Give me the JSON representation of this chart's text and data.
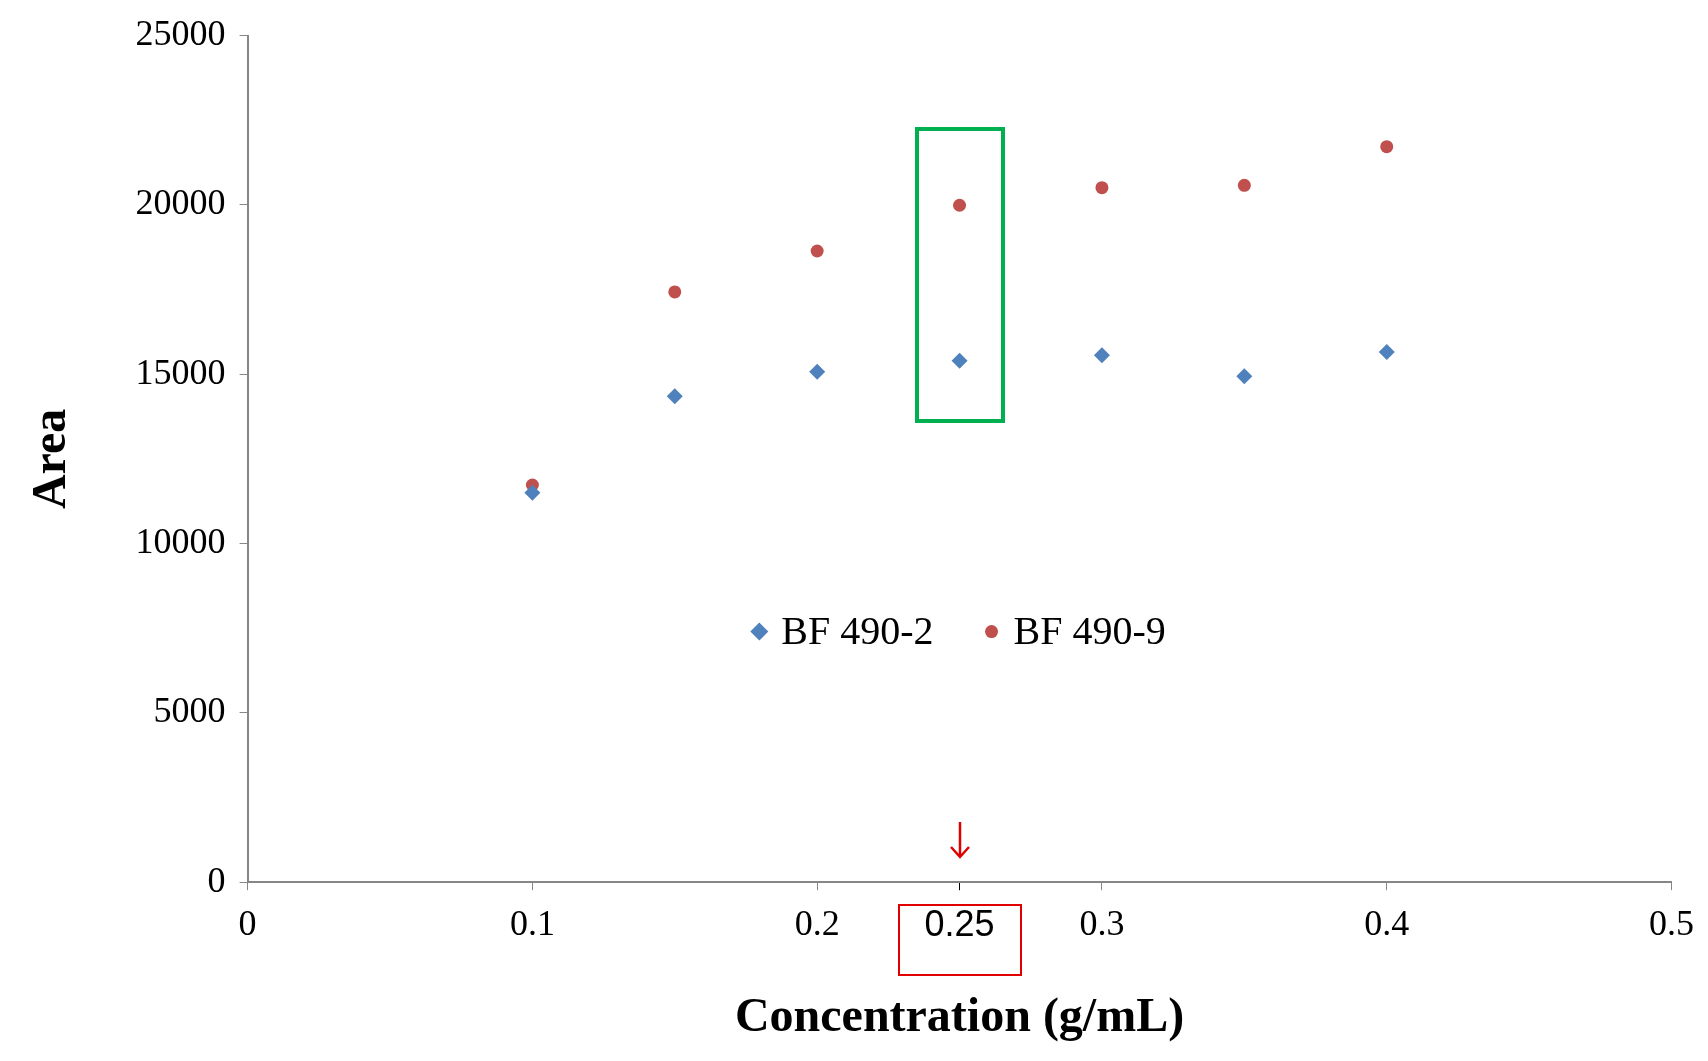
{
  "chart_data": {
    "type": "scatter",
    "xlabel": "Concentration (g/mL)",
    "ylabel": "Area",
    "xlim": [
      0,
      0.5
    ],
    "xticks": [
      0,
      0.1,
      0.2,
      {
        "value": 0.25,
        "label": "0.25"
      },
      0.3,
      0.4,
      0.5
    ],
    "ylim": [
      0,
      25000
    ],
    "yticks": [
      0,
      5000,
      10000,
      15000,
      20000,
      25000
    ],
    "x": [
      0.1,
      0.15,
      0.2,
      0.25,
      0.3,
      0.35,
      0.4
    ],
    "series": [
      {
        "name": "BF 490-2",
        "color": "#4f81bd",
        "marker": "diamond",
        "values": [
          11500,
          14350,
          15070,
          15400,
          15560,
          14940,
          15660
        ]
      },
      {
        "name": "BF 490-9",
        "color": "#c0504d",
        "marker": "circle",
        "values": [
          11730,
          17430,
          18640,
          19990,
          20510,
          20580,
          21720
        ]
      }
    ],
    "grid": false,
    "legend": "center"
  }
}
